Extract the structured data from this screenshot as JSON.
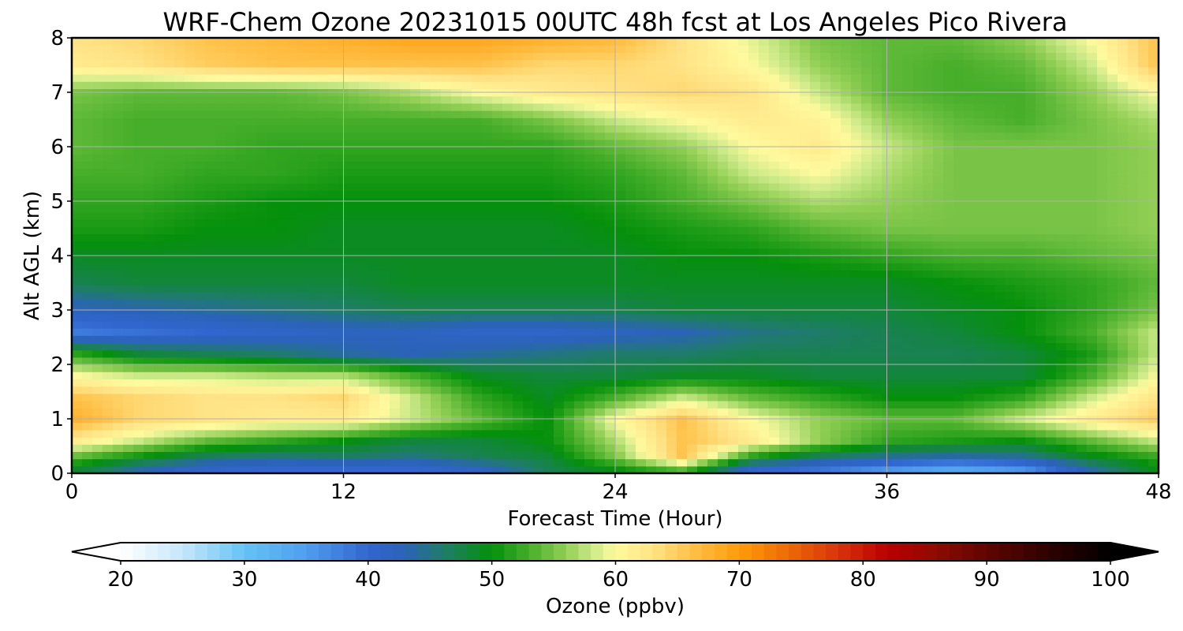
{
  "chart_data": {
    "type": "heatmap",
    "title": "WRF-Chem Ozone  20231015 00UTC 48h fcst at Los Angeles Pico Rivera",
    "xlabel": "Forecast Time (Hour)",
    "ylabel": "Alt AGL (km)",
    "xlim": [
      0,
      48
    ],
    "ylim": [
      0,
      8
    ],
    "x_ticks": [
      0,
      12,
      24,
      36,
      48
    ],
    "y_ticks": [
      0,
      1,
      2,
      3,
      4,
      5,
      6,
      7,
      8
    ],
    "grid": true,
    "x": [
      0,
      3,
      6,
      9,
      12,
      15,
      18,
      21,
      24,
      27,
      30,
      33,
      36,
      39,
      42,
      45,
      48
    ],
    "y": [
      0.1,
      0.3,
      0.6,
      1.0,
      1.4,
      1.8,
      2.2,
      2.6,
      3.0,
      3.5,
      4.0,
      4.5,
      5.0,
      5.5,
      6.0,
      6.5,
      7.0,
      7.5,
      8.0
    ],
    "z": [
      [
        49,
        44,
        41,
        40,
        40,
        40,
        42,
        47,
        50,
        54,
        41,
        39,
        36,
        34,
        36,
        44,
        50
      ],
      [
        54,
        50,
        46,
        45,
        46,
        45,
        47,
        48,
        55,
        66,
        51,
        46,
        44,
        43,
        44,
        49,
        52
      ],
      [
        62,
        58,
        54,
        52,
        50,
        48,
        48,
        50,
        57,
        66,
        62,
        56,
        52,
        51,
        50,
        54,
        58
      ],
      [
        68,
        64,
        63,
        62,
        62,
        58,
        54,
        50,
        60,
        66,
        60,
        56,
        54,
        54,
        58,
        62,
        65
      ],
      [
        66,
        64,
        63,
        63,
        64,
        58,
        52,
        49,
        53,
        58,
        54,
        52,
        50,
        50,
        52,
        58,
        63
      ],
      [
        60,
        58,
        58,
        57,
        57,
        53,
        49,
        48,
        48,
        49,
        49,
        48,
        48,
        48,
        48,
        53,
        60
      ],
      [
        52,
        48,
        47,
        46,
        44,
        43,
        44,
        45,
        46,
        46,
        47,
        47,
        47,
        47,
        48,
        51,
        58
      ],
      [
        38,
        39,
        40,
        41,
        42,
        42,
        41,
        41,
        42,
        43,
        45,
        46,
        47,
        48,
        50,
        53,
        58
      ],
      [
        42,
        43,
        44,
        45,
        46,
        47,
        47,
        47,
        47,
        48,
        48,
        48,
        48,
        49,
        50,
        52,
        55
      ],
      [
        47,
        48,
        48,
        48,
        48,
        49,
        49,
        49,
        49,
        49,
        49,
        49,
        49,
        50,
        51,
        52,
        54
      ],
      [
        49,
        49,
        49,
        49,
        49,
        49,
        49,
        49,
        49,
        50,
        50,
        51,
        52,
        53,
        53,
        54,
        55
      ],
      [
        51,
        51,
        50,
        50,
        49,
        49,
        49,
        49,
        50,
        51,
        52,
        54,
        55,
        55,
        55,
        55,
        56
      ],
      [
        52,
        52,
        51,
        50,
        50,
        50,
        50,
        50,
        51,
        53,
        55,
        57,
        56,
        55,
        55,
        55,
        56
      ],
      [
        53,
        53,
        52,
        52,
        51,
        51,
        51,
        51,
        52,
        54,
        58,
        60,
        57,
        55,
        55,
        55,
        56
      ],
      [
        54,
        53,
        53,
        52,
        52,
        52,
        52,
        52,
        54,
        56,
        60,
        62,
        58,
        55,
        55,
        55,
        56
      ],
      [
        54,
        53,
        53,
        53,
        53,
        53,
        53,
        55,
        58,
        60,
        62,
        61,
        56,
        54,
        53,
        55,
        57
      ],
      [
        55,
        54,
        54,
        54,
        55,
        57,
        60,
        62,
        63,
        64,
        63,
        58,
        54,
        53,
        53,
        56,
        60
      ],
      [
        62,
        63,
        65,
        66,
        66,
        66,
        66,
        64,
        64,
        63,
        60,
        56,
        54,
        53,
        54,
        58,
        66
      ],
      [
        63,
        64,
        66,
        67,
        68,
        69,
        69,
        68,
        67,
        63,
        59,
        55,
        54,
        54,
        56,
        60,
        66
      ]
    ],
    "colorbar": {
      "label": "Ozone  (ppbv)",
      "min": 20,
      "max": 100,
      "ticks": [
        20,
        30,
        40,
        50,
        60,
        70,
        80,
        90,
        100
      ],
      "extend": "both",
      "colors": [
        {
          "v": 20,
          "c": "#ffffff"
        },
        {
          "v": 25,
          "c": "#c6e6fb"
        },
        {
          "v": 30,
          "c": "#64c3f4"
        },
        {
          "v": 35,
          "c": "#4f9ef0"
        },
        {
          "v": 40,
          "c": "#3166cf"
        },
        {
          "v": 43,
          "c": "#2b63b8"
        },
        {
          "v": 46,
          "c": "#1f7c6a"
        },
        {
          "v": 50,
          "c": "#05900b"
        },
        {
          "v": 53,
          "c": "#46ae2a"
        },
        {
          "v": 56,
          "c": "#92cf55"
        },
        {
          "v": 58,
          "c": "#c8e886"
        },
        {
          "v": 60,
          "c": "#fffa9e"
        },
        {
          "v": 63,
          "c": "#ffe386"
        },
        {
          "v": 66,
          "c": "#ffc24a"
        },
        {
          "v": 70,
          "c": "#ff9b0c"
        },
        {
          "v": 74,
          "c": "#ec6a05"
        },
        {
          "v": 78,
          "c": "#d8330b"
        },
        {
          "v": 82,
          "c": "#b80000"
        },
        {
          "v": 86,
          "c": "#8c0b00"
        },
        {
          "v": 90,
          "c": "#5f0500"
        },
        {
          "v": 95,
          "c": "#2e0200"
        },
        {
          "v": 100,
          "c": "#000000"
        }
      ]
    }
  }
}
